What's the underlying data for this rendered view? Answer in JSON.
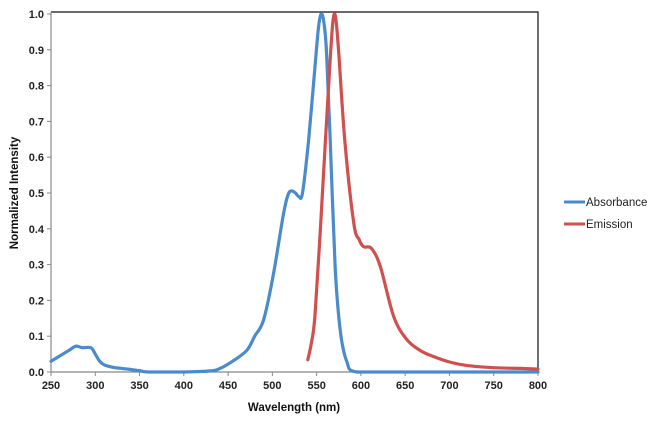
{
  "chart_data": {
    "type": "line",
    "title": "",
    "xlabel": "Wavelength (nm)",
    "ylabel": "Normalized Intensity",
    "xlim": [
      250,
      800
    ],
    "ylim": [
      0,
      1.0
    ],
    "xticks": [
      "250",
      "300",
      "350",
      "400",
      "450",
      "500",
      "550",
      "600",
      "650",
      "700",
      "750",
      "800"
    ],
    "yticks": [
      "0.0",
      "0.1",
      "0.2",
      "0.3",
      "0.4",
      "0.5",
      "0.6",
      "0.7",
      "0.8",
      "0.9",
      "1.0"
    ],
    "grid": false,
    "legend_position": "right",
    "series": [
      {
        "name": "Absorbance",
        "color": "#4A8BCB",
        "x": [
          250,
          260,
          270,
          278,
          285,
          295,
          300,
          305,
          310,
          320,
          330,
          340,
          350,
          360,
          400,
          430,
          441,
          455,
          471,
          480,
          490,
          501,
          512,
          517,
          521,
          526,
          530,
          534,
          541,
          548,
          552,
          555,
          558,
          561,
          565,
          571,
          577,
          584,
          595,
          650,
          800
        ],
        "y": [
          0.03,
          0.045,
          0.06,
          0.072,
          0.068,
          0.068,
          0.05,
          0.03,
          0.02,
          0.013,
          0.01,
          0.007,
          0.004,
          0.0,
          0.0,
          0.003,
          0.01,
          0.03,
          0.06,
          0.1,
          0.145,
          0.27,
          0.434,
          0.49,
          0.506,
          0.5,
          0.49,
          0.5,
          0.65,
          0.85,
          0.96,
          1.0,
          0.98,
          0.9,
          0.67,
          0.29,
          0.11,
          0.03,
          0.0,
          0.0,
          0.0
        ]
      },
      {
        "name": "Emission",
        "color": "#D0504E",
        "x": [
          540,
          544,
          548,
          554,
          560,
          565,
          568,
          570,
          572,
          575,
          582,
          592,
          598,
          603,
          612,
          622,
          637,
          652,
          667,
          680,
          700,
          720,
          750,
          780,
          800
        ],
        "y": [
          0.034,
          0.08,
          0.155,
          0.39,
          0.65,
          0.86,
          0.97,
          1.0,
          0.98,
          0.89,
          0.64,
          0.415,
          0.37,
          0.35,
          0.345,
          0.294,
          0.155,
          0.09,
          0.06,
          0.045,
          0.028,
          0.018,
          0.012,
          0.01,
          0.008
        ]
      }
    ]
  }
}
